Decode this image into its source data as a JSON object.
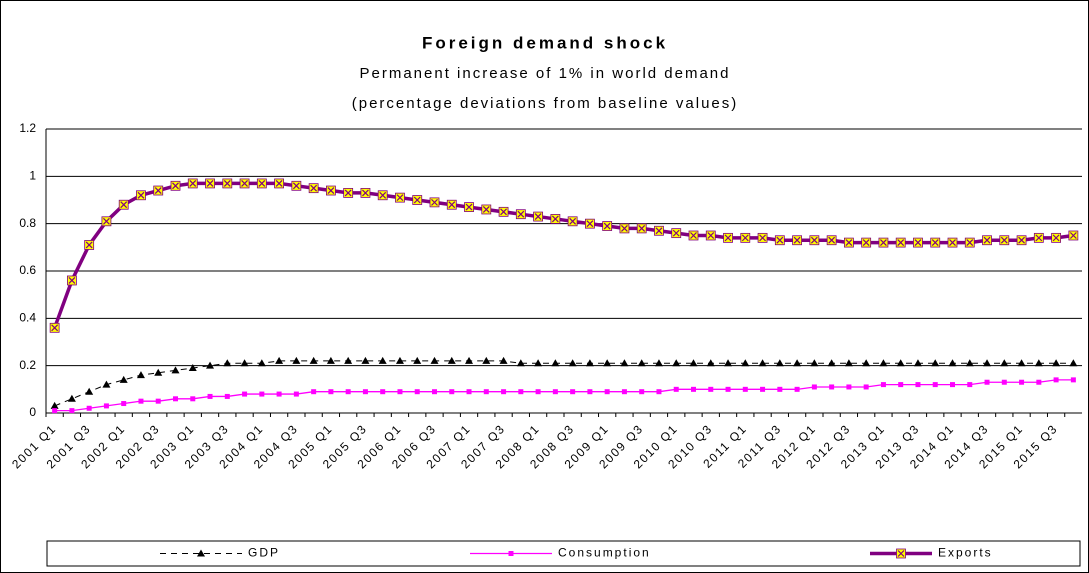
{
  "chart_data": {
    "type": "line",
    "title": "Foreign demand shock",
    "subtitle": [
      "Permanent increase of 1% in world demand",
      "(percentage deviations from baseline values)"
    ],
    "categories": [
      "2001 Q1",
      null,
      "2001 Q3",
      null,
      "2002 Q1",
      null,
      "2002 Q3",
      null,
      "2003 Q1",
      null,
      "2003 Q3",
      null,
      "2004 Q1",
      null,
      "2004 Q3",
      null,
      "2005 Q1",
      null,
      "2005 Q3",
      null,
      "2006 Q1",
      null,
      "2006 Q3",
      null,
      "2007 Q1",
      null,
      "2007 Q3",
      null,
      "2008 Q1",
      null,
      "2008 Q3",
      null,
      "2009 Q1",
      null,
      "2009 Q3",
      null,
      "2010 Q1",
      null,
      "2010 Q3",
      null,
      "2011 Q1",
      null,
      "2011 Q3",
      null,
      "2012 Q1",
      null,
      "2012 Q3",
      null,
      "2013 Q1",
      null,
      "2013 Q3",
      null,
      "2014 Q1",
      null,
      "2014 Q3",
      null,
      "2015 Q1",
      null,
      "2015 Q3",
      null
    ],
    "series": [
      {
        "name": "GDP",
        "color": "#000000",
        "line_style": "dashed",
        "marker": "triangle",
        "values": [
          0.03,
          0.06,
          0.09,
          0.12,
          0.14,
          0.16,
          0.17,
          0.18,
          0.19,
          0.2,
          0.21,
          0.21,
          0.21,
          0.22,
          0.22,
          0.22,
          0.22,
          0.22,
          0.22,
          0.22,
          0.22,
          0.22,
          0.22,
          0.22,
          0.22,
          0.22,
          0.22,
          0.21,
          0.21,
          0.21,
          0.21,
          0.21,
          0.21,
          0.21,
          0.21,
          0.21,
          0.21,
          0.21,
          0.21,
          0.21,
          0.21,
          0.21,
          0.21,
          0.21,
          0.21,
          0.21,
          0.21,
          0.21,
          0.21,
          0.21,
          0.21,
          0.21,
          0.21,
          0.21,
          0.21,
          0.21,
          0.21,
          0.21,
          0.21,
          0.21
        ]
      },
      {
        "name": "Consumption",
        "color": "#ff00ff",
        "line_style": "solid",
        "marker": "square",
        "values": [
          0.01,
          0.01,
          0.02,
          0.03,
          0.04,
          0.05,
          0.05,
          0.06,
          0.06,
          0.07,
          0.07,
          0.08,
          0.08,
          0.08,
          0.08,
          0.09,
          0.09,
          0.09,
          0.09,
          0.09,
          0.09,
          0.09,
          0.09,
          0.09,
          0.09,
          0.09,
          0.09,
          0.09,
          0.09,
          0.09,
          0.09,
          0.09,
          0.09,
          0.09,
          0.09,
          0.09,
          0.1,
          0.1,
          0.1,
          0.1,
          0.1,
          0.1,
          0.1,
          0.1,
          0.11,
          0.11,
          0.11,
          0.11,
          0.12,
          0.12,
          0.12,
          0.12,
          0.12,
          0.12,
          0.13,
          0.13,
          0.13,
          0.13,
          0.14,
          0.14
        ]
      },
      {
        "name": "Exports",
        "color": "#800080",
        "line_style": "thick",
        "marker": "cross-square",
        "values": [
          0.36,
          0.56,
          0.71,
          0.81,
          0.88,
          0.92,
          0.94,
          0.96,
          0.97,
          0.97,
          0.97,
          0.97,
          0.97,
          0.97,
          0.96,
          0.95,
          0.94,
          0.93,
          0.93,
          0.92,
          0.91,
          0.9,
          0.89,
          0.88,
          0.87,
          0.86,
          0.85,
          0.84,
          0.83,
          0.82,
          0.81,
          0.8,
          0.79,
          0.78,
          0.78,
          0.77,
          0.76,
          0.75,
          0.75,
          0.74,
          0.74,
          0.74,
          0.73,
          0.73,
          0.73,
          0.73,
          0.72,
          0.72,
          0.72,
          0.72,
          0.72,
          0.72,
          0.72,
          0.72,
          0.73,
          0.73,
          0.73,
          0.74,
          0.74,
          0.75
        ]
      }
    ],
    "ylim": [
      0,
      1.2
    ],
    "yticks": [
      0,
      0.2,
      0.4,
      0.6,
      0.8,
      1,
      1.2
    ],
    "grid": true,
    "legend": "bottom"
  }
}
